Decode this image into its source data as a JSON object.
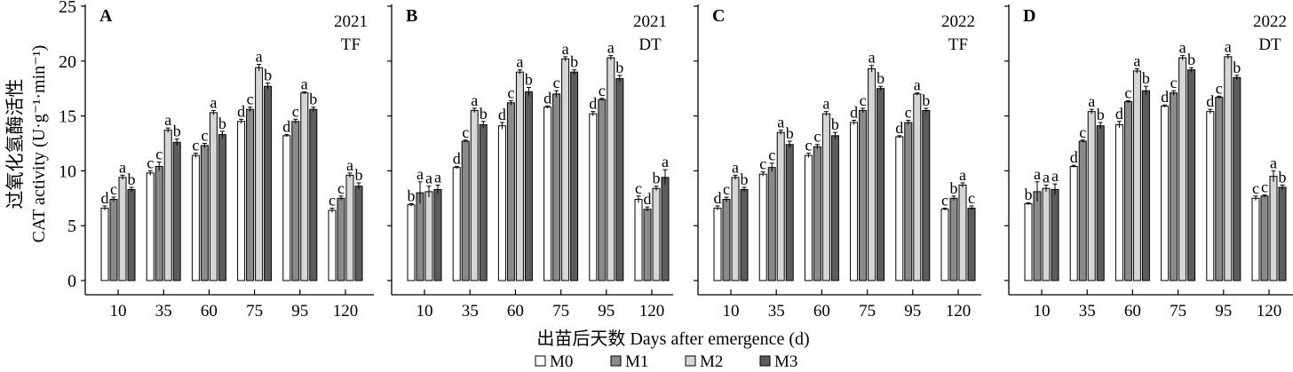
{
  "chart_data": {
    "type": "bar",
    "ylabel_cn": "过氧化氢酶活性",
    "ylabel": "CAT activity (U·g⁻¹·min⁻¹)",
    "xlabel": "出苗后天数 Days after emergence (d)",
    "ylim": [
      0,
      25
    ],
    "yticks": [
      "0",
      "5",
      "10",
      "15",
      "20",
      "25"
    ],
    "categories": [
      "10",
      "35",
      "60",
      "75",
      "95",
      "120"
    ],
    "legend": [
      {
        "name": "M0",
        "color": "#ffffff"
      },
      {
        "name": "M1",
        "color": "#8a8a8a"
      },
      {
        "name": "M2",
        "color": "#d6d6d6"
      },
      {
        "name": "M3",
        "color": "#5c5c5c"
      }
    ],
    "legend_position": "bottom",
    "panels": [
      {
        "label": "A",
        "year": "2021",
        "site": "TF",
        "values": [
          [
            6.6,
            7.4,
            9.4,
            8.3
          ],
          [
            9.8,
            10.4,
            13.7,
            12.6
          ],
          [
            11.4,
            12.3,
            15.3,
            13.3
          ],
          [
            14.5,
            15.6,
            19.4,
            17.7
          ],
          [
            13.2,
            14.5,
            17.1,
            15.6
          ],
          [
            6.4,
            7.5,
            9.6,
            8.6
          ]
        ],
        "errors": [
          [
            0.2,
            0.2,
            0.2,
            0.2
          ],
          [
            0.2,
            0.4,
            0.2,
            0.3
          ],
          [
            0.2,
            0.2,
            0.2,
            0.3
          ],
          [
            0.2,
            0.2,
            0.3,
            0.3
          ],
          [
            0.1,
            0.2,
            0.1,
            0.2
          ],
          [
            0.2,
            0.2,
            0.2,
            0.3
          ]
        ],
        "letters": [
          [
            "d",
            "c",
            "a",
            "b"
          ],
          [
            "c",
            "c",
            "a",
            "b"
          ],
          [
            "c",
            "c",
            "a",
            "b"
          ],
          [
            "d",
            "c",
            "a",
            "b"
          ],
          [
            "d",
            "c",
            "a",
            "b"
          ],
          [
            "c",
            "c",
            "a",
            "b"
          ]
        ]
      },
      {
        "label": "B",
        "year": "2021",
        "site": "DT",
        "values": [
          [
            6.9,
            8.0,
            8.1,
            8.3
          ],
          [
            10.3,
            12.7,
            15.5,
            14.2
          ],
          [
            14.1,
            16.2,
            19.0,
            17.2
          ],
          [
            15.8,
            17.0,
            20.2,
            19.0
          ],
          [
            15.2,
            16.5,
            20.3,
            18.4
          ],
          [
            7.4,
            6.5,
            8.4,
            9.4
          ]
        ],
        "errors": [
          [
            0.1,
            1.0,
            0.5,
            0.4
          ],
          [
            0.1,
            0.1,
            0.2,
            0.3
          ],
          [
            0.3,
            0.2,
            0.2,
            0.4
          ],
          [
            0.1,
            0.3,
            0.2,
            0.2
          ],
          [
            0.2,
            0.1,
            0.2,
            0.3
          ],
          [
            0.3,
            0.2,
            0.2,
            0.7
          ]
        ],
        "letters": [
          [
            "b",
            "a",
            "a",
            "a"
          ],
          [
            "d",
            "c",
            "a",
            "b"
          ],
          [
            "d",
            "c",
            "a",
            "b"
          ],
          [
            "d",
            "c",
            "a",
            "b"
          ],
          [
            "d",
            "c",
            "a",
            "b"
          ],
          [
            "c",
            "d",
            "b",
            "a"
          ]
        ]
      },
      {
        "label": "C",
        "year": "2022",
        "site": "TF",
        "values": [
          [
            6.6,
            7.4,
            9.4,
            8.3
          ],
          [
            9.7,
            10.3,
            13.5,
            12.4
          ],
          [
            11.4,
            12.2,
            15.2,
            13.2
          ],
          [
            14.4,
            15.5,
            19.3,
            17.5
          ],
          [
            13.1,
            14.4,
            17.0,
            15.5
          ],
          [
            6.5,
            7.5,
            8.7,
            6.6
          ]
        ],
        "errors": [
          [
            0.2,
            0.2,
            0.2,
            0.2
          ],
          [
            0.2,
            0.4,
            0.2,
            0.3
          ],
          [
            0.2,
            0.2,
            0.2,
            0.3
          ],
          [
            0.2,
            0.2,
            0.3,
            0.2
          ],
          [
            0.1,
            0.2,
            0.1,
            0.2
          ],
          [
            0.1,
            0.2,
            0.2,
            0.2
          ]
        ],
        "letters": [
          [
            "d",
            "c",
            "a",
            "b"
          ],
          [
            "c",
            "c",
            "a",
            "b"
          ],
          [
            "c",
            "c",
            "a",
            "b"
          ],
          [
            "d",
            "c",
            "a",
            "b"
          ],
          [
            "d",
            "c",
            "a",
            "b"
          ],
          [
            "c",
            "b",
            "a",
            "c"
          ]
        ]
      },
      {
        "label": "D",
        "year": "2022",
        "site": "DT",
        "values": [
          [
            7.0,
            8.1,
            8.4,
            8.3
          ],
          [
            10.4,
            12.7,
            15.4,
            14.1
          ],
          [
            14.2,
            16.3,
            19.1,
            17.3
          ],
          [
            15.9,
            17.1,
            20.3,
            19.2
          ],
          [
            15.4,
            16.7,
            20.4,
            18.5
          ],
          [
            7.5,
            7.7,
            9.5,
            8.5
          ]
        ],
        "errors": [
          [
            0.1,
            0.9,
            0.3,
            0.5
          ],
          [
            0.1,
            0.1,
            0.2,
            0.3
          ],
          [
            0.3,
            0.1,
            0.2,
            0.4
          ],
          [
            0.1,
            0.2,
            0.2,
            0.2
          ],
          [
            0.2,
            0.1,
            0.2,
            0.2
          ],
          [
            0.2,
            0.1,
            0.5,
            0.2
          ]
        ],
        "letters": [
          [
            "b",
            "a",
            "a",
            "a"
          ],
          [
            "d",
            "c",
            "a",
            "b"
          ],
          [
            "d",
            "c",
            "a",
            "b"
          ],
          [
            "d",
            "c",
            "a",
            "b"
          ],
          [
            "d",
            "c",
            "a",
            "b"
          ],
          [
            "c",
            "c",
            "a",
            "b"
          ]
        ]
      }
    ]
  }
}
